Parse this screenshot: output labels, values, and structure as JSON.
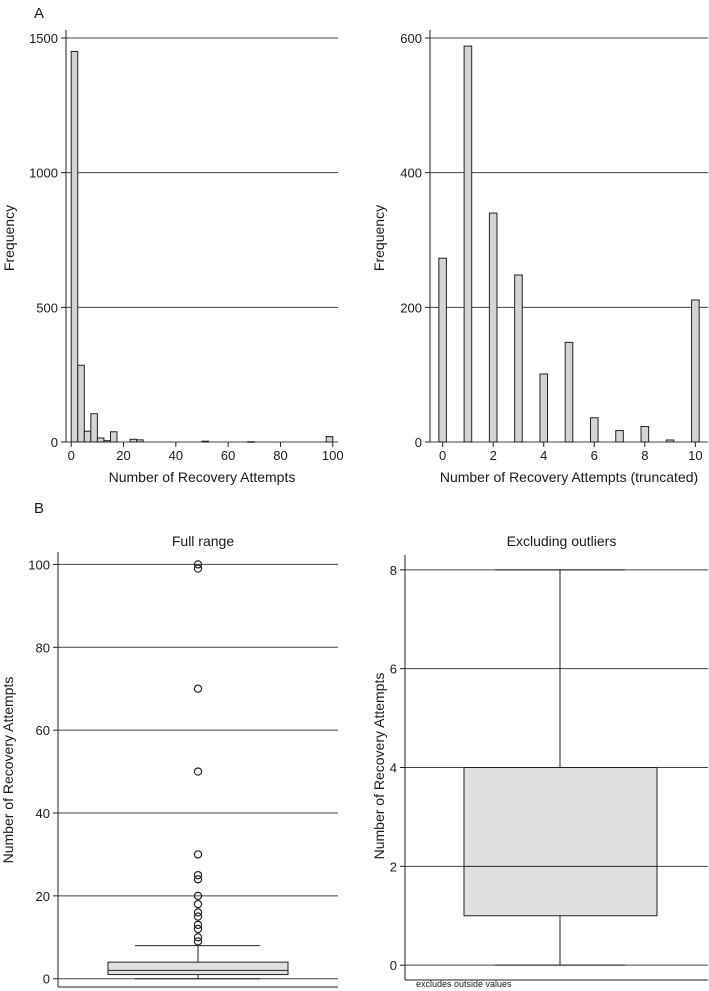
{
  "panel_labels": [
    "A",
    "B"
  ],
  "chart_data": [
    {
      "type": "bar",
      "panel": "A",
      "xlabel": "Number of Recovery Attempts",
      "ylabel": "Frequency",
      "xlim": [
        -2,
        102
      ],
      "ylim": [
        0,
        1500
      ],
      "xticks": [
        0,
        20,
        40,
        60,
        80,
        100
      ],
      "yticks": [
        0,
        500,
        1000,
        1500
      ],
      "bin_width": 2.5,
      "bins": [
        {
          "x": 1.25,
          "y": 1450
        },
        {
          "x": 3.75,
          "y": 285
        },
        {
          "x": 6.25,
          "y": 40
        },
        {
          "x": 8.75,
          "y": 105
        },
        {
          "x": 11.25,
          "y": 15
        },
        {
          "x": 13.75,
          "y": 5
        },
        {
          "x": 16.25,
          "y": 38
        },
        {
          "x": 23.75,
          "y": 10
        },
        {
          "x": 26.25,
          "y": 8
        },
        {
          "x": 51.25,
          "y": 3
        },
        {
          "x": 68.75,
          "y": 1
        },
        {
          "x": 98.75,
          "y": 20
        }
      ]
    },
    {
      "type": "bar",
      "panel": "A",
      "xlabel": "Number of Recovery Attempts (truncated)",
      "ylabel": "Frequency",
      "xlim": [
        -0.5,
        10.5
      ],
      "ylim": [
        0,
        600
      ],
      "xticks": [
        0,
        2,
        4,
        6,
        8,
        10
      ],
      "yticks": [
        0,
        200,
        400,
        600
      ],
      "bin_width": 0.3,
      "bins": [
        {
          "x": 0,
          "y": 273
        },
        {
          "x": 1,
          "y": 588
        },
        {
          "x": 2,
          "y": 340
        },
        {
          "x": 3,
          "y": 248
        },
        {
          "x": 4,
          "y": 101
        },
        {
          "x": 5,
          "y": 148
        },
        {
          "x": 6,
          "y": 36
        },
        {
          "x": 7,
          "y": 17
        },
        {
          "x": 8,
          "y": 23
        },
        {
          "x": 9,
          "y": 3
        },
        {
          "x": 10,
          "y": 211
        }
      ]
    },
    {
      "type": "box",
      "panel": "B",
      "title": "Full range",
      "ylabel": "Number of Recovery Attempts",
      "ylim": [
        -2,
        103
      ],
      "yticks": [
        0,
        20,
        40,
        60,
        80,
        100
      ],
      "whisker_low": 0,
      "q1": 1,
      "median": 2,
      "q3": 4,
      "whisker_high": 8,
      "outliers": [
        9,
        10,
        12,
        13,
        15,
        16,
        18,
        20,
        24,
        25,
        30,
        50,
        70,
        99,
        100
      ]
    },
    {
      "type": "box",
      "panel": "B",
      "title": "Excluding outliers",
      "ylabel": "Number of Recovery Attempts",
      "note": "excludes outside values",
      "ylim": [
        -0.3,
        8.3
      ],
      "yticks": [
        0,
        2,
        4,
        6,
        8
      ],
      "whisker_low": 0,
      "q1": 1,
      "median": 2,
      "q3": 4,
      "whisker_high": 8,
      "outliers": []
    }
  ]
}
